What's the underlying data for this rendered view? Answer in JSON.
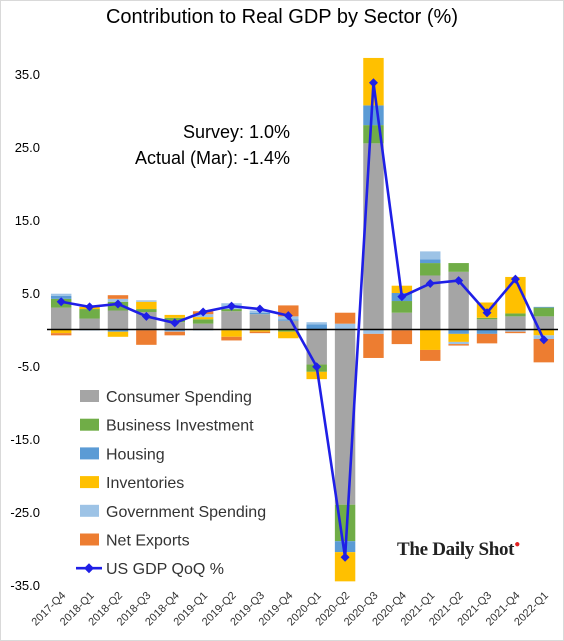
{
  "chart_data": {
    "type": "bar",
    "stacked": true,
    "title": "Contribution to Real GDP by Sector (%)",
    "categories": [
      "2017-Q4",
      "2018-Q1",
      "2018-Q2",
      "2018-Q3",
      "2018-Q4",
      "2019-Q1",
      "2019-Q2",
      "2019-Q3",
      "2019-Q4",
      "2020-Q1",
      "2020-Q2",
      "2020-Q3",
      "2020-Q4",
      "2021-Q1",
      "2021-Q2",
      "2021-Q3",
      "2021-Q4",
      "2022-Q1"
    ],
    "ylim": [
      -35,
      40
    ],
    "yticks": [
      35,
      25,
      15,
      5,
      -5,
      -15,
      -25,
      -35
    ],
    "ytick_labels": [
      "35.0",
      "25.0",
      "15.0",
      "5.0",
      "-5.0",
      "-15.0",
      "-25.0",
      "-35.0"
    ],
    "grid": false,
    "legend_position": "bottom-left",
    "series": [
      {
        "name": "Consumer Spending",
        "color": "#a5a5a5",
        "values": [
          3.0,
          1.5,
          2.6,
          2.4,
          1.0,
          0.8,
          2.5,
          2.1,
          1.2,
          -4.8,
          -24.0,
          25.5,
          2.3,
          7.4,
          7.9,
          1.4,
          1.8,
          1.8
        ]
      },
      {
        "name": "Business Investment",
        "color": "#70ad47",
        "values": [
          1.2,
          1.3,
          1.2,
          0.4,
          0.6,
          0.6,
          0.3,
          -0.1,
          -0.3,
          -1.0,
          -5.0,
          2.5,
          1.6,
          1.7,
          1.2,
          0.2,
          0.4,
          1.2
        ]
      },
      {
        "name": "Housing",
        "color": "#5b9bd5",
        "values": [
          0.4,
          -0.1,
          -0.3,
          -0.1,
          -0.2,
          -0.1,
          -0.1,
          0.2,
          0.2,
          0.7,
          -1.5,
          2.7,
          1.1,
          0.5,
          -0.6,
          -0.6,
          -0.1,
          0.1
        ]
      },
      {
        "name": "Inventories",
        "color": "#ffc000",
        "values": [
          -0.5,
          0.3,
          -0.7,
          1.0,
          0.4,
          0.3,
          -0.9,
          -0.2,
          -0.9,
          -1.0,
          -4.0,
          6.5,
          1.0,
          -2.8,
          -1.1,
          2.1,
          5.0,
          -0.8
        ]
      },
      {
        "name": "Government Spending",
        "color": "#9dc3e6",
        "values": [
          0.3,
          0.2,
          0.4,
          0.2,
          -0.1,
          0.4,
          0.8,
          0.3,
          0.4,
          0.3,
          0.8,
          -0.6,
          -0.1,
          1.1,
          -0.3,
          0.0,
          -0.2,
          -0.5
        ]
      },
      {
        "name": "Net Exports",
        "color": "#ed7d31",
        "values": [
          -0.3,
          0.0,
          0.5,
          -2.0,
          -0.5,
          0.4,
          -0.5,
          -0.2,
          1.5,
          0.0,
          1.5,
          -3.3,
          -1.9,
          -1.5,
          -0.2,
          -1.3,
          -0.2,
          -3.2
        ]
      }
    ],
    "line_series": {
      "name": "US GDP QoQ %",
      "color": "#1f1fe6",
      "values": [
        3.8,
        3.1,
        3.5,
        1.8,
        0.9,
        2.4,
        3.2,
        2.8,
        1.9,
        -5.1,
        -31.2,
        33.8,
        4.5,
        6.3,
        6.7,
        2.3,
        6.9,
        -1.4
      ]
    },
    "annotations": [
      "Survey:  1.0%",
      "Actual (Mar):  -1.4%"
    ],
    "source_label": "The Daily Shot"
  }
}
